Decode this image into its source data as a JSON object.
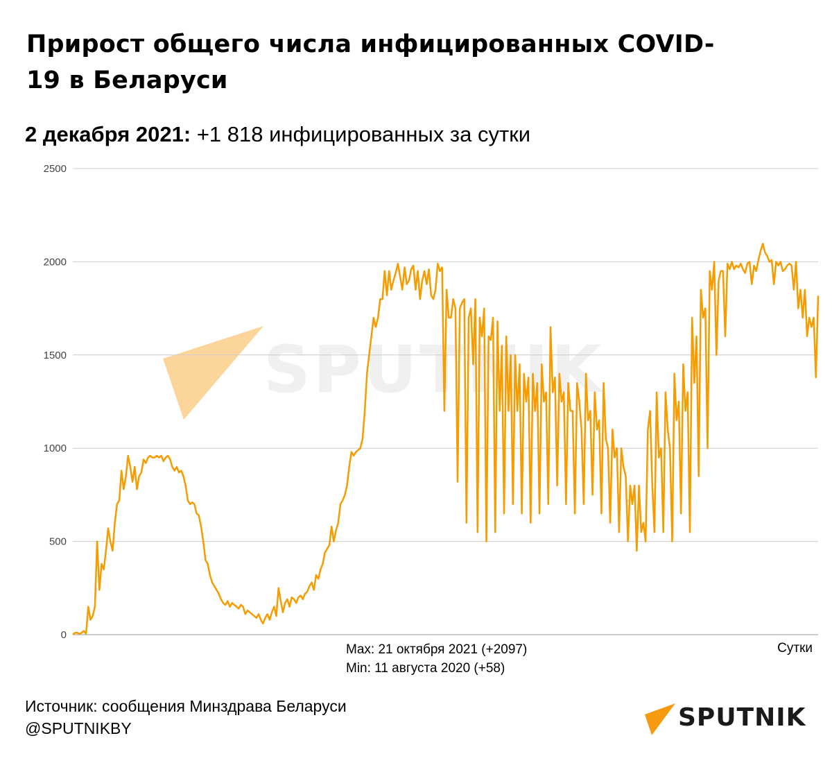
{
  "title": "Прирост общего числа инфицированных COVID-19 в Беларуси",
  "subtitle": {
    "date": "2 декабря 2021:",
    "value": "+1 818 инфицированных за сутки"
  },
  "stats": {
    "max": "Max: 21 октября 2021 (+2097)",
    "min": "Min: 11 августа 2020 (+58)"
  },
  "source": "Источник: сообщения Минздрава Беларуси",
  "handle": "@SPUTNIKBY",
  "logo_text": "SPUTNIK",
  "watermark_text": "SPUTNIK",
  "colors": {
    "line": "#f59c00",
    "logo_accent": "#f79a0f",
    "grid": "#cccccc"
  },
  "chart_data": {
    "type": "line",
    "xlabel": "Сутки",
    "ylabel": "",
    "ylim": [
      0,
      2500
    ],
    "yticks": [
      0,
      500,
      1000,
      1500,
      2000,
      2500
    ],
    "grid": true,
    "series": [
      {
        "values": [
          0,
          10,
          10,
          5,
          10,
          20,
          5,
          150,
          80,
          100,
          150,
          500,
          240,
          380,
          350,
          450,
          570,
          500,
          450,
          600,
          700,
          720,
          880,
          780,
          850,
          960,
          900,
          820,
          900,
          780,
          850,
          870,
          940,
          920,
          950,
          960,
          950,
          950,
          960,
          950,
          960,
          930,
          950,
          960,
          940,
          900,
          880,
          900,
          870,
          880,
          850,
          800,
          720,
          700,
          710,
          700,
          650,
          640,
          580,
          500,
          400,
          380,
          320,
          280,
          260,
          240,
          220,
          190,
          170,
          160,
          180,
          150,
          170,
          160,
          150,
          140,
          160,
          150,
          110,
          130,
          120,
          110,
          100,
          90,
          110,
          80,
          60,
          90,
          110,
          80,
          120,
          150,
          100,
          250,
          180,
          120,
          170,
          190,
          150,
          200,
          190,
          170,
          200,
          210,
          190,
          220,
          230,
          260,
          280,
          240,
          320,
          300,
          350,
          380,
          440,
          460,
          480,
          580,
          500,
          560,
          600,
          700,
          720,
          750,
          800,
          900,
          980,
          960,
          980,
          990,
          1000,
          1050,
          1200,
          1400,
          1500,
          1600,
          1700,
          1650,
          1700,
          1800,
          1800,
          1950,
          1820,
          1950,
          1850,
          1900,
          1940,
          1990,
          1920,
          1850,
          1970,
          1880,
          1900,
          1960,
          1980,
          1850,
          1950,
          1800,
          1900,
          1950,
          1880,
          1960,
          1820,
          1800,
          1850,
          1990,
          1950,
          1970,
          1200,
          1850,
          1700,
          1700,
          1800,
          1750,
          820,
          1750,
          1780,
          1800,
          600,
          1700,
          1750,
          1450,
          1800,
          550,
          1700,
          1600,
          1750,
          500,
          1600,
          1580,
          1700,
          550,
          1680,
          1200,
          1550,
          650,
          1600,
          1200,
          1500,
          700,
          1500,
          1200,
          1450,
          650,
          1400,
          1250,
          1380,
          600,
          1400,
          1200,
          1350,
          650,
          1450,
          1250,
          1300,
          700,
          1650,
          1300,
          1380,
          800,
          1400,
          1250,
          1300,
          700,
          1350,
          1200,
          1200,
          650,
          1350,
          1250,
          1100,
          700,
          1400,
          1150,
          1200,
          750,
          1300,
          1100,
          1150,
          650,
          1350,
          1050,
          1000,
          600,
          1100,
          950,
          1000,
          550,
          1000,
          900,
          850,
          500,
          800,
          700,
          800,
          450,
          800,
          550,
          600,
          500,
          1100,
          1200,
          800,
          550,
          1300,
          950,
          1000,
          550,
          1300,
          1100,
          1000,
          500,
          1400,
          1150,
          1250,
          650,
          1450,
          1200,
          1300,
          550,
          1700,
          1350,
          1600,
          850,
          1850,
          1700,
          1750,
          1000,
          1950,
          1850,
          2000,
          1500,
          1900,
          1950,
          1950,
          1600,
          1990,
          1960,
          2000,
          1960,
          1980,
          1970,
          1990,
          1960,
          1940,
          1990,
          2000,
          1880,
          1980,
          1950,
          2010,
          2060,
          2097,
          2050,
          2030,
          2000,
          2010,
          1880,
          2000,
          1980,
          2000,
          1950,
          1960,
          1980,
          1990,
          1980,
          1850,
          2000,
          1750,
          1850,
          1700,
          1850,
          1600,
          1700,
          1650,
          1700,
          1380,
          1818
        ]
      }
    ]
  }
}
